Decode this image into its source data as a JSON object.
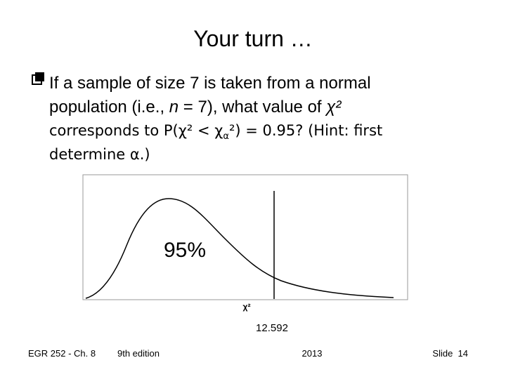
{
  "slide": {
    "title": "Your turn …",
    "bullet": [
      [
        "If a sample of size 7 is taken from a normal"
      ],
      [
        "population (i.e., ",
        "n",
        " = 7), what value of ",
        "χ²"
      ],
      [
        "corresponds to P(χ² < χ",
        "α",
        "²) = 0.95? (Hint: first"
      ],
      [
        "determine α.)"
      ]
    ],
    "figure": {
      "area_label": "95%",
      "axis_label": "χ²",
      "critical_value": "12.592"
    },
    "footer": {
      "course": "EGR 252 - Ch. 8",
      "edition": "9th edition",
      "year": "2013",
      "slide": "Slide  14"
    }
  }
}
